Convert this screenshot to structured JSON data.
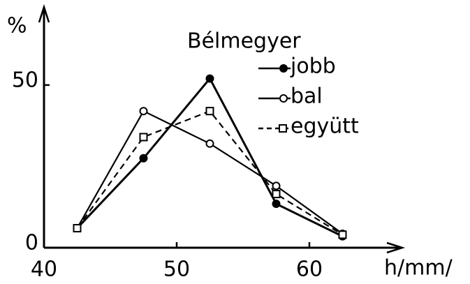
{
  "chart_data": {
    "type": "line",
    "legend_title": "Bélmegyer",
    "y_label": "%",
    "x_label": "h/mm/",
    "xlim": [
      40,
      67
    ],
    "xticks": [
      40,
      50,
      60
    ],
    "ylim": [
      0,
      74
    ],
    "yticks": [
      0,
      50
    ],
    "legend": "upper right",
    "series": [
      {
        "name": "jobb",
        "color": "#000000",
        "dashed": false,
        "marker": "filled-circle",
        "x": [
          42.5,
          47.5,
          52.5,
          57.5,
          62.5
        ],
        "values": [
          6,
          27.5,
          52,
          13.5,
          3.5
        ]
      },
      {
        "name": "bal",
        "color": "#000000",
        "dashed": false,
        "marker": "open-circle",
        "x": [
          42.5,
          47.5,
          52.5,
          57.5,
          62.5
        ],
        "values": [
          6,
          42,
          32,
          19,
          4.3
        ]
      },
      {
        "name": "együtt",
        "color": "#000000",
        "dashed": true,
        "marker": "open-square",
        "x": [
          42.5,
          47.5,
          52.5,
          57.5,
          62.5
        ],
        "values": [
          6,
          34,
          42,
          16.5,
          4
        ]
      }
    ]
  }
}
